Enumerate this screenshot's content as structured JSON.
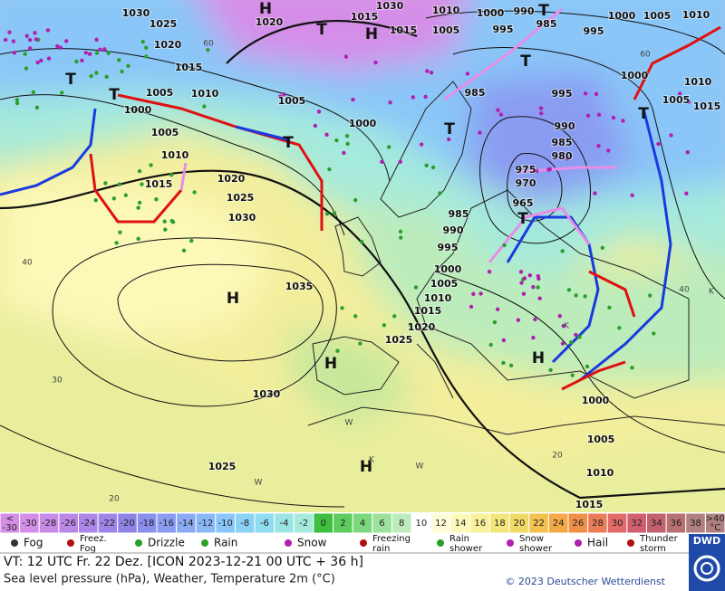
{
  "map": {
    "isobar_labels": [
      "1030",
      "1025",
      "1020",
      "1015",
      "1005",
      "1010",
      "1000",
      "1005",
      "1010",
      "1015",
      "1020",
      "1025",
      "1030",
      "1035",
      "1030",
      "1025",
      "1025",
      "1020",
      "1015",
      "1010",
      "1005",
      "1000",
      "995",
      "990",
      "985",
      "1005",
      "1000",
      "985",
      "1020",
      "1015",
      "1030",
      "1015",
      "1010",
      "1005",
      "1000",
      "995",
      "990",
      "985",
      "995",
      "1000",
      "1005",
      "1010",
      "1000",
      "1005",
      "1010",
      "1015",
      "995",
      "990",
      "985",
      "980",
      "975",
      "970",
      "965",
      "1000",
      "1005",
      "1010",
      "1015"
    ],
    "pressure_centers": [
      "H",
      "H",
      "H",
      "H",
      "H",
      "H",
      "T",
      "T",
      "T",
      "T",
      "T",
      "T",
      "T",
      "T",
      "T"
    ],
    "grid_labels": [
      "60",
      "40",
      "30",
      "20",
      "60",
      "40",
      "20",
      "K",
      "K",
      "W",
      "W",
      "W",
      "K"
    ]
  },
  "colorbar": {
    "under_label": [
      "<",
      "-30"
    ],
    "ticks": [
      -30,
      -28,
      -26,
      -24,
      -22,
      -20,
      -18,
      -16,
      -14,
      -12,
      -10,
      -8,
      -6,
      -4,
      -2,
      0,
      2,
      4,
      6,
      8,
      10,
      12,
      14,
      16,
      18,
      20,
      22,
      24,
      26,
      28,
      30,
      32,
      34,
      36,
      38
    ],
    "colors": [
      "#d58ee8",
      "#c98be8",
      "#bc88e8",
      "#ae86e8",
      "#a085e8",
      "#8f84e6",
      "#8a8fee",
      "#8a9cf2",
      "#8aaaf4",
      "#8ab8f6",
      "#8ac6f8",
      "#8ad2f6",
      "#90dcf0",
      "#9ae4e6",
      "#a6eadc",
      "#3fbf3f",
      "#5ccc5c",
      "#7cd87c",
      "#9ce29c",
      "#bcecbc",
      "#ffffff",
      "#fefcd8",
      "#fcf8b8",
      "#f8f09a",
      "#f4e67c",
      "#f0da66",
      "#f4c050",
      "#f4a848",
      "#f09048",
      "#ec7c58",
      "#e26a6a",
      "#d06070",
      "#c26070",
      "#b87070",
      "#b08080"
    ],
    "over_label": [
      ">40",
      "°C"
    ]
  },
  "legend": [
    [
      "Fog"
    ],
    [
      "Freez.",
      "Fog"
    ],
    [
      "Drizzle"
    ],
    [
      "Rain"
    ],
    [
      "Snow"
    ],
    [
      "Freezing",
      "rain"
    ],
    [
      "Rain",
      "shower"
    ],
    [
      "Snow",
      "shower"
    ],
    [
      "Hail"
    ],
    [
      "Thunder",
      "storm"
    ]
  ],
  "footer": {
    "valid_time": "VT: 12 UTC Fr.  22 Dez. [ICON 2023-12-21  00 UTC + 36 h]",
    "description": "Sea level pressure (hPa), Weather, Temperature 2m (°C)",
    "copyright": "© 2023 Deutscher Wetterdienst",
    "logo": "DWD"
  }
}
